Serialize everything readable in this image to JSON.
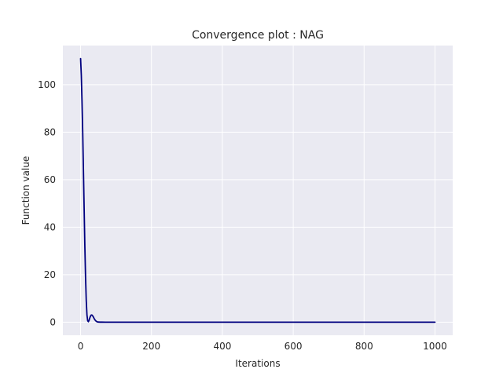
{
  "chart_data": {
    "type": "line",
    "title": "Convergence plot : NAG",
    "xlabel": "Iterations",
    "ylabel": "Function value",
    "xlim": [
      -50,
      1050
    ],
    "ylim": [
      -5.5,
      116.5
    ],
    "xticks": [
      0,
      200,
      400,
      600,
      800,
      1000
    ],
    "yticks": [
      0,
      20,
      40,
      60,
      80,
      100
    ],
    "grid": true,
    "legend": "none",
    "colors": {
      "background": "#eaeaf2",
      "grid": "#ffffff",
      "line": "#00007f"
    },
    "series": [
      {
        "x": [
          0,
          2,
          4,
          6,
          8,
          10,
          12,
          14,
          16,
          18,
          20,
          22,
          24,
          26,
          28,
          30,
          32,
          34,
          36,
          38,
          40,
          42,
          44,
          46,
          48,
          50,
          55,
          60,
          70,
          80,
          100,
          150,
          200,
          300,
          400,
          500,
          600,
          700,
          800,
          900,
          1000
        ],
        "y": [
          111,
          104,
          93,
          80,
          64,
          48,
          32,
          19,
          9,
          3,
          0.6,
          0.2,
          0.8,
          1.8,
          2.6,
          3.0,
          3.0,
          2.7,
          2.2,
          1.6,
          1.1,
          0.7,
          0.4,
          0.2,
          0.1,
          0.05,
          0.02,
          0.01,
          0,
          0,
          0,
          0,
          0,
          0,
          0,
          0,
          0,
          0,
          0,
          0,
          0
        ]
      }
    ]
  }
}
